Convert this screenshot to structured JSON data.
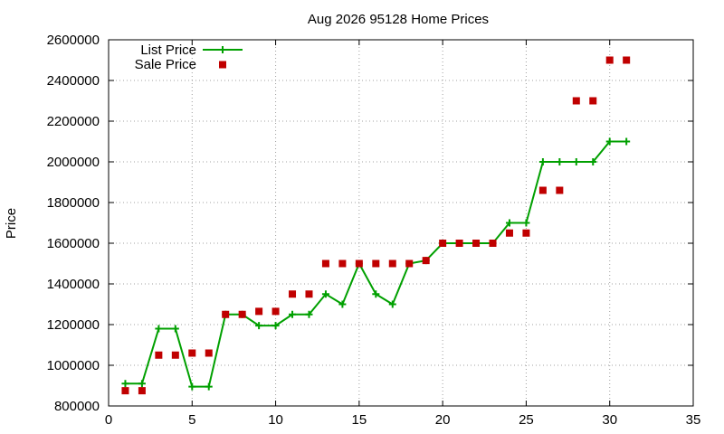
{
  "chart_data": {
    "type": "line",
    "title": "Aug 2026 95128 Home Prices",
    "xlabel": "",
    "ylabel": "Price",
    "xlim": [
      0,
      35
    ],
    "ylim": [
      800000,
      2600000
    ],
    "xticks": [
      0,
      5,
      10,
      15,
      20,
      25,
      30,
      35
    ],
    "yticks": [
      800000,
      1000000,
      1200000,
      1400000,
      1600000,
      1800000,
      2000000,
      2200000,
      2400000,
      2600000
    ],
    "grid": true,
    "legend_position": "top-left",
    "series": [
      {
        "name": "List Price",
        "style": "linespoints",
        "color": "#00a000",
        "x": [
          1,
          2,
          3,
          4,
          5,
          6,
          7,
          8,
          9,
          10,
          11,
          12,
          13,
          14,
          15,
          16,
          17,
          18,
          19,
          20,
          21,
          22,
          23,
          24,
          25,
          26,
          27,
          28,
          29,
          30,
          31
        ],
        "y": [
          910000,
          910000,
          1180000,
          1180000,
          895000,
          895000,
          1250000,
          1250000,
          1195000,
          1195000,
          1250000,
          1250000,
          1350000,
          1300000,
          1500000,
          1350000,
          1300000,
          1500000,
          1515000,
          1600000,
          1600000,
          1600000,
          1600000,
          1700000,
          1700000,
          2000000,
          2000000,
          2000000,
          2000000,
          2100000,
          2100000
        ]
      },
      {
        "name": "Sale Price",
        "style": "points",
        "color": "#c00000",
        "x": [
          1,
          2,
          3,
          4,
          5,
          6,
          7,
          8,
          9,
          10,
          11,
          12,
          13,
          14,
          15,
          16,
          17,
          18,
          19,
          20,
          21,
          22,
          23,
          24,
          25,
          26,
          27,
          28,
          29,
          30,
          31
        ],
        "y": [
          875000,
          875000,
          1050000,
          1050000,
          1060000,
          1060000,
          1250000,
          1250000,
          1265000,
          1265000,
          1350000,
          1350000,
          1500000,
          1500000,
          1500000,
          1500000,
          1500000,
          1500000,
          1515000,
          1600000,
          1600000,
          1600000,
          1600000,
          1650000,
          1650000,
          1860000,
          1860000,
          2300000,
          2300000,
          2500000,
          2500000
        ]
      }
    ]
  }
}
